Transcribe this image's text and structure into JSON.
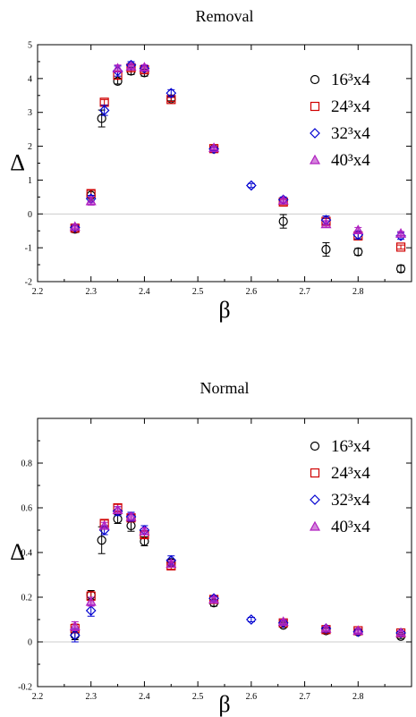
{
  "chart_data": [
    {
      "type": "scatter",
      "title": "Removal",
      "xlabel": "β",
      "ylabel": "Δ",
      "xlim": [
        2.2,
        2.9
      ],
      "ylim": [
        -2,
        5
      ],
      "xticks": [
        "2.2",
        "2.3",
        "2.4",
        "2.5",
        "2.6",
        "2.7",
        "2.8"
      ],
      "yticks": [
        "-2",
        "-1",
        "0",
        "1",
        "2",
        "3",
        "4",
        "5"
      ],
      "legend_position": "top-right",
      "series": [
        {
          "name": "16³x4",
          "marker": "circle",
          "color": "#000000",
          "points": [
            [
              2.27,
              -0.45
            ],
            [
              2.3,
              0.55
            ],
            [
              2.32,
              2.82
            ],
            [
              2.35,
              3.92
            ],
            [
              2.375,
              4.22
            ],
            [
              2.4,
              4.17
            ],
            [
              2.45,
              3.4
            ],
            [
              2.53,
              1.92
            ],
            [
              2.66,
              -0.22
            ],
            [
              2.74,
              -1.05
            ],
            [
              2.8,
              -1.12
            ],
            [
              2.88,
              -1.62
            ]
          ],
          "err": [
            0.1,
            0.15,
            0.25,
            0.08,
            0.1,
            0.1,
            0.06,
            0.05,
            0.2,
            0.2,
            0.1,
            0.1
          ]
        },
        {
          "name": "24³x4",
          "marker": "square",
          "color": "#d00000",
          "points": [
            [
              2.27,
              -0.42
            ],
            [
              2.3,
              0.6
            ],
            [
              2.325,
              3.3
            ],
            [
              2.35,
              4.1
            ],
            [
              2.375,
              4.32
            ],
            [
              2.4,
              4.26
            ],
            [
              2.45,
              3.38
            ],
            [
              2.53,
              1.93
            ],
            [
              2.66,
              0.35
            ],
            [
              2.74,
              -0.22
            ],
            [
              2.8,
              -0.65
            ],
            [
              2.88,
              -0.98
            ]
          ],
          "err": [
            0.08,
            0.1,
            0.08,
            0.12,
            0.08,
            0.08,
            0.06,
            0.05,
            0.08,
            0.08,
            0.08,
            0.06
          ]
        },
        {
          "name": "32³x4",
          "marker": "diamond",
          "color": "#0000d0",
          "points": [
            [
              2.27,
              -0.4
            ],
            [
              2.3,
              0.45
            ],
            [
              2.325,
              3.06
            ],
            [
              2.35,
              4.22
            ],
            [
              2.375,
              4.4
            ],
            [
              2.4,
              4.3
            ],
            [
              2.45,
              3.57
            ],
            [
              2.53,
              1.92
            ],
            [
              2.6,
              0.84
            ],
            [
              2.66,
              0.42
            ],
            [
              2.74,
              -0.18
            ],
            [
              2.8,
              -0.62
            ],
            [
              2.88,
              -0.65
            ]
          ],
          "err": [
            0.08,
            0.1,
            0.15,
            0.15,
            0.1,
            0.08,
            0.1,
            0.05,
            0.06,
            0.08,
            0.12,
            0.12,
            0.1
          ]
        },
        {
          "name": "40³x4",
          "marker": "triangle",
          "color": "#b020c0",
          "points": [
            [
              2.27,
              -0.38
            ],
            [
              2.3,
              0.38
            ],
            [
              2.35,
              4.3
            ],
            [
              2.375,
              4.36
            ],
            [
              2.4,
              4.33
            ],
            [
              2.53,
              1.95
            ],
            [
              2.66,
              0.4
            ],
            [
              2.74,
              -0.3
            ],
            [
              2.8,
              -0.48
            ],
            [
              2.88,
              -0.58
            ]
          ],
          "err": [
            0.06,
            0.12,
            0.1,
            0.06,
            0.08,
            0.05,
            0.06,
            0.1,
            0.08,
            0.06
          ]
        }
      ]
    },
    {
      "type": "scatter",
      "title": "Normal",
      "xlabel": "β",
      "ylabel": "Δ",
      "xlim": [
        2.2,
        2.9
      ],
      "ylim": [
        -0.2,
        1.0
      ],
      "xticks": [
        "2.2",
        "2.3",
        "2.4",
        "2.5",
        "2.6",
        "2.7",
        "2.8"
      ],
      "yticks": [
        "-0.2",
        "0",
        "0.2",
        "0.4",
        "0.6",
        "0.8"
      ],
      "legend_position": "top-right",
      "series": [
        {
          "name": "16³x4",
          "marker": "circle",
          "color": "#000000",
          "points": [
            [
              2.27,
              0.03
            ],
            [
              2.3,
              0.21
            ],
            [
              2.32,
              0.455
            ],
            [
              2.35,
              0.55
            ],
            [
              2.375,
              0.52
            ],
            [
              2.4,
              0.45
            ],
            [
              2.45,
              0.355
            ],
            [
              2.53,
              0.175
            ],
            [
              2.66,
              0.075
            ],
            [
              2.74,
              0.05
            ],
            [
              2.8,
              0.045
            ],
            [
              2.88,
              0.025
            ]
          ],
          "err": [
            0.02,
            0.02,
            0.06,
            0.02,
            0.025,
            0.02,
            0.015,
            0.015,
            0.01,
            0.01,
            0.01,
            0.01
          ]
        },
        {
          "name": "24³x4",
          "marker": "square",
          "color": "#d00000",
          "points": [
            [
              2.27,
              0.06
            ],
            [
              2.3,
              0.205
            ],
            [
              2.325,
              0.53
            ],
            [
              2.35,
              0.6
            ],
            [
              2.375,
              0.555
            ],
            [
              2.4,
              0.48
            ],
            [
              2.45,
              0.34
            ],
            [
              2.53,
              0.19
            ],
            [
              2.66,
              0.085
            ],
            [
              2.74,
              0.055
            ],
            [
              2.8,
              0.05
            ],
            [
              2.88,
              0.04
            ]
          ],
          "err": [
            0.02,
            0.02,
            0.015,
            0.015,
            0.015,
            0.015,
            0.015,
            0.01,
            0.01,
            0.01,
            0.01,
            0.01
          ]
        },
        {
          "name": "32³x4",
          "marker": "diamond",
          "color": "#0000d0",
          "points": [
            [
              2.27,
              0.03
            ],
            [
              2.3,
              0.14
            ],
            [
              2.325,
              0.5
            ],
            [
              2.35,
              0.585
            ],
            [
              2.375,
              0.56
            ],
            [
              2.4,
              0.5
            ],
            [
              2.45,
              0.365
            ],
            [
              2.53,
              0.195
            ],
            [
              2.6,
              0.1
            ],
            [
              2.66,
              0.085
            ],
            [
              2.74,
              0.06
            ],
            [
              2.8,
              0.045
            ],
            [
              2.88,
              0.04
            ]
          ],
          "err": [
            0.03,
            0.025,
            0.02,
            0.02,
            0.02,
            0.02,
            0.02,
            0.01,
            0.01,
            0.01,
            0.01,
            0.01,
            0.01
          ]
        },
        {
          "name": "40³x4",
          "marker": "triangle",
          "color": "#b020c0",
          "points": [
            [
              2.27,
              0.07
            ],
            [
              2.3,
              0.18
            ],
            [
              2.325,
              0.52
            ],
            [
              2.35,
              0.59
            ],
            [
              2.375,
              0.56
            ],
            [
              2.4,
              0.495
            ],
            [
              2.45,
              0.35
            ],
            [
              2.53,
              0.19
            ],
            [
              2.66,
              0.09
            ],
            [
              2.74,
              0.06
            ],
            [
              2.8,
              0.05
            ],
            [
              2.88,
              0.04
            ]
          ],
          "err": [
            0.02,
            0.02,
            0.015,
            0.015,
            0.015,
            0.015,
            0.015,
            0.01,
            0.01,
            0.01,
            0.01,
            0.01
          ]
        }
      ]
    }
  ]
}
